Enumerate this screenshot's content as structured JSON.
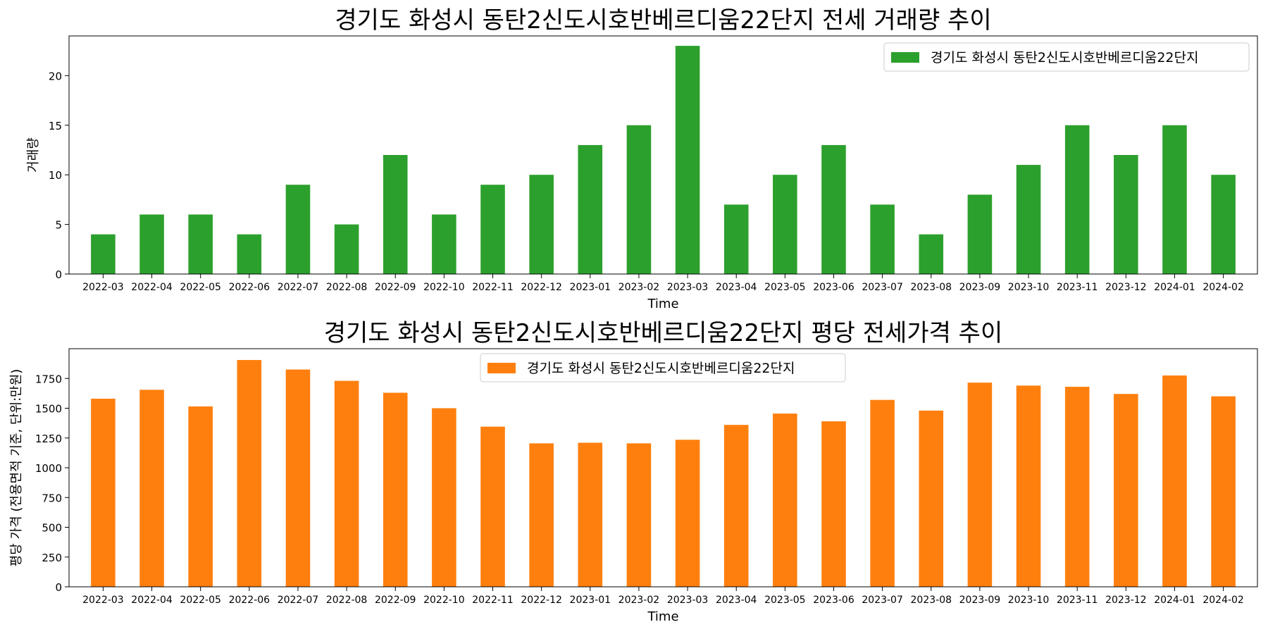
{
  "chart_data": [
    {
      "type": "bar",
      "title": "경기도 화성시 동탄2신도시호반베르디움22단지 전세 거래량 추이",
      "xlabel": "Time",
      "ylabel": "거래량",
      "ylim": [
        0,
        24
      ],
      "yticks": [
        0,
        5,
        10,
        15,
        20
      ],
      "grid": false,
      "legend_position": "top-right",
      "categories": [
        "2022-03",
        "2022-04",
        "2022-05",
        "2022-06",
        "2022-07",
        "2022-08",
        "2022-09",
        "2022-10",
        "2022-11",
        "2022-12",
        "2023-01",
        "2023-02",
        "2023-03",
        "2023-04",
        "2023-05",
        "2023-06",
        "2023-07",
        "2023-08",
        "2023-09",
        "2023-10",
        "2023-11",
        "2023-12",
        "2024-01",
        "2024-02"
      ],
      "series": [
        {
          "name": "경기도 화성시 동탄2신도시호반베르디움22단지",
          "color": "#2ca02c",
          "values": [
            4,
            6,
            6,
            4,
            9,
            5,
            12,
            6,
            9,
            10,
            13,
            15,
            23,
            7,
            10,
            13,
            7,
            4,
            8,
            11,
            15,
            12,
            15,
            10
          ]
        }
      ]
    },
    {
      "type": "bar",
      "title": "경기도 화성시 동탄2신도시호반베르디움22단지 평당 전세가격 추이",
      "xlabel": "Time",
      "ylabel": "평당 가격 (전용면적 기준, 단위:만원)",
      "ylim": [
        0,
        2000
      ],
      "yticks": [
        0,
        250,
        500,
        750,
        1000,
        1250,
        1500,
        1750
      ],
      "grid": false,
      "legend_position": "top-center",
      "categories": [
        "2022-03",
        "2022-04",
        "2022-05",
        "2022-06",
        "2022-07",
        "2022-08",
        "2022-09",
        "2022-10",
        "2022-11",
        "2022-12",
        "2023-01",
        "2023-02",
        "2023-03",
        "2023-04",
        "2023-05",
        "2023-06",
        "2023-07",
        "2023-08",
        "2023-09",
        "2023-10",
        "2023-11",
        "2023-12",
        "2024-01",
        "2024-02"
      ],
      "series": [
        {
          "name": "경기도 화성시 동탄2신도시호반베르디움22단지",
          "color": "#ff7f0e",
          "values": [
            1580,
            1655,
            1515,
            1905,
            1825,
            1730,
            1630,
            1500,
            1345,
            1205,
            1210,
            1205,
            1235,
            1360,
            1455,
            1390,
            1570,
            1480,
            1715,
            1690,
            1680,
            1620,
            1775,
            1600
          ]
        }
      ]
    }
  ]
}
